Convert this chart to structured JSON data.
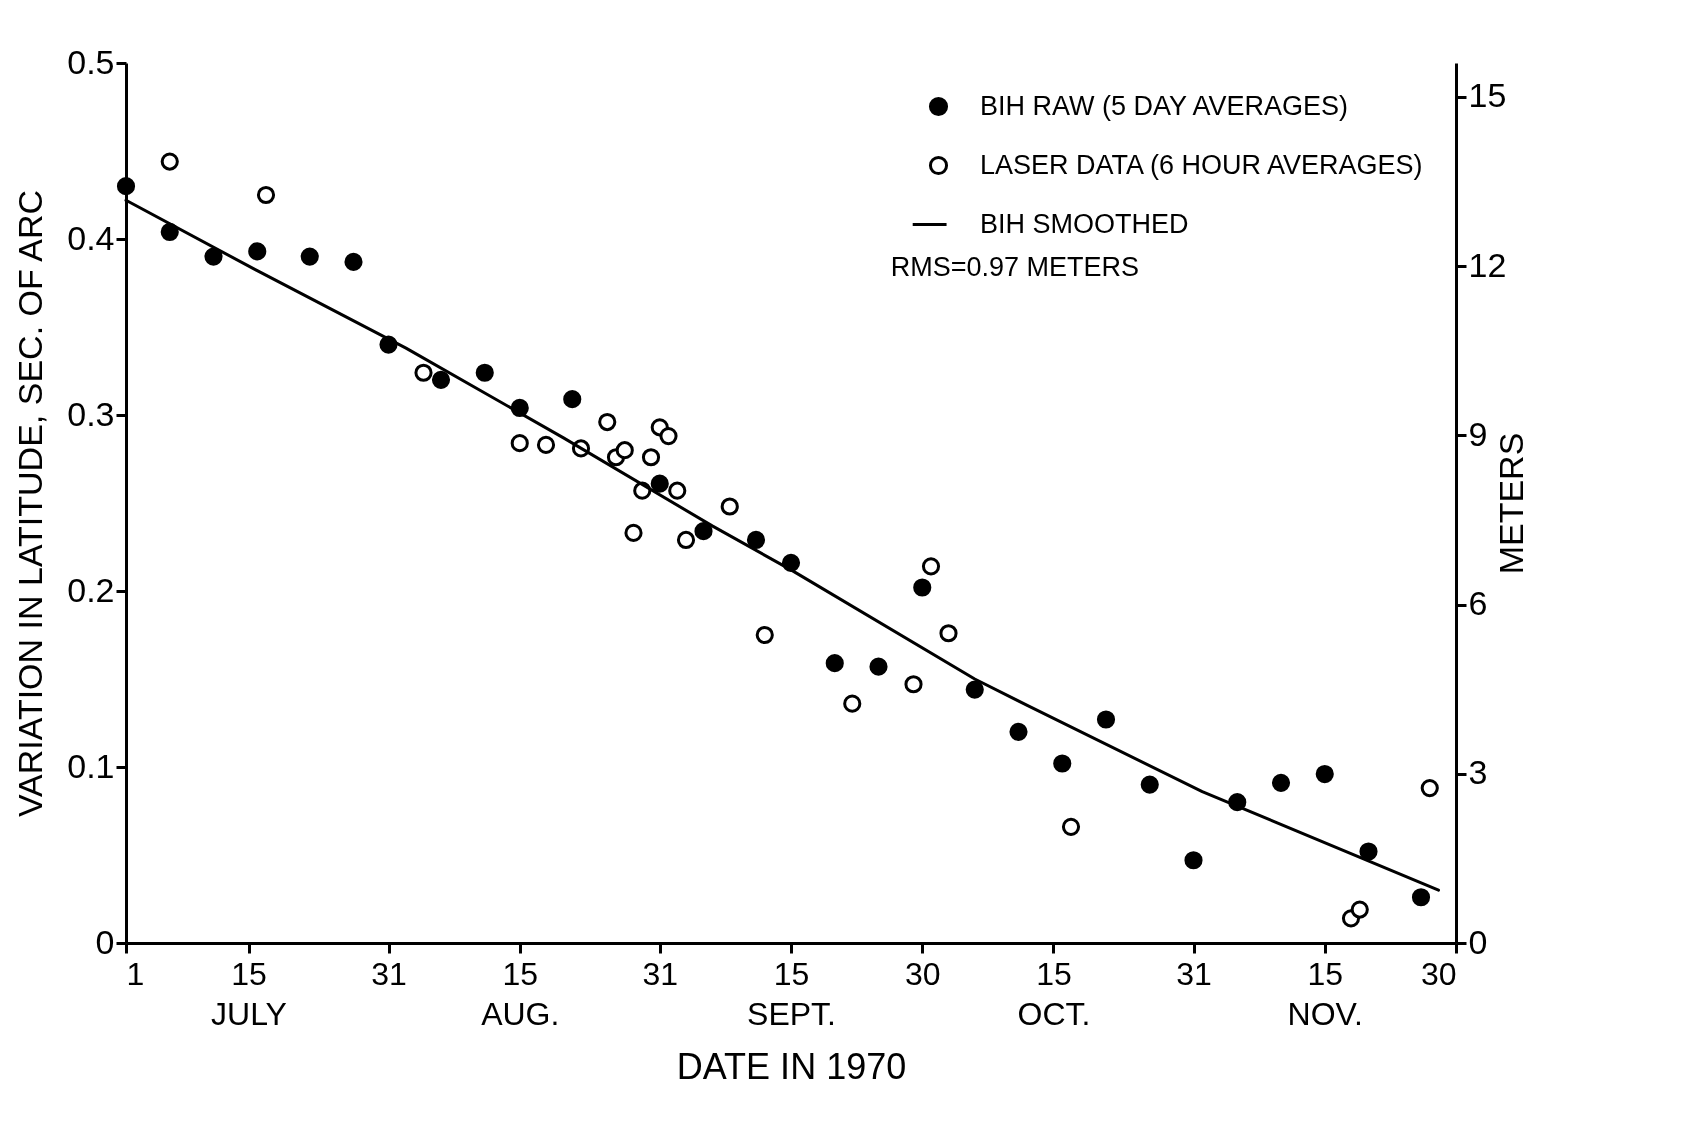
{
  "chart_data": {
    "type": "scatter",
    "xlabel": "DATE IN 1970",
    "ylabel": "VARIATION IN LATITUDE, SEC. OF ARC",
    "y2label": "METERS",
    "annotations": [
      "RMS=0.97 METERS"
    ],
    "xlim": [
      "1970-07-01",
      "1970-11-30"
    ],
    "xticks": [
      {
        "value": "1970-07-01",
        "label": "1"
      },
      {
        "value": "1970-07-15",
        "label": "15\nJULY"
      },
      {
        "value": "1970-07-31",
        "label": "31"
      },
      {
        "value": "1970-08-15",
        "label": "15\nAUG."
      },
      {
        "value": "1970-08-31",
        "label": "31"
      },
      {
        "value": "1970-09-15",
        "label": "15\nSEPT."
      },
      {
        "value": "1970-09-30",
        "label": "30"
      },
      {
        "value": "1970-10-15",
        "label": "15\nOCT."
      },
      {
        "value": "1970-10-31",
        "label": "31"
      },
      {
        "value": "1970-11-15",
        "label": "15\nNOV."
      },
      {
        "value": "1970-11-30",
        "label": "30"
      }
    ],
    "ylim": [
      0,
      0.5
    ],
    "yticks": [
      0,
      0.1,
      0.2,
      0.3,
      0.4,
      0.5
    ],
    "y2lim": [
      0,
      15.6
    ],
    "y2ticks": [
      0,
      3,
      6,
      9,
      12,
      15
    ],
    "legend": "top right",
    "series": [
      {
        "name": "BIH RAW (5 DAY AVERAGES)",
        "marker": "circle",
        "color": "#000000",
        "x": [
          "1970-07-01",
          "1970-07-06",
          "1970-07-11",
          "1970-07-16",
          "1970-07-22",
          "1970-07-27",
          "1970-07-31",
          "1970-08-06",
          "1970-08-11",
          "1970-08-15",
          "1970-08-21",
          "1970-08-31",
          "1970-09-05",
          "1970-09-11",
          "1970-09-15",
          "1970-09-20",
          "1970-09-25",
          "1970-09-30",
          "1970-10-06",
          "1970-10-11",
          "1970-10-16",
          "1970-10-21",
          "1970-10-26",
          "1970-10-31",
          "1970-11-05",
          "1970-11-10",
          "1970-11-15",
          "1970-11-20",
          "1970-11-26"
        ],
        "values": [
          0.43,
          0.404,
          0.39,
          0.393,
          0.39,
          0.387,
          0.34,
          0.32,
          0.324,
          0.304,
          0.309,
          0.261,
          0.234,
          0.229,
          0.216,
          0.159,
          0.157,
          0.202,
          0.144,
          0.12,
          0.102,
          0.127,
          0.09,
          0.047,
          0.08,
          0.091,
          0.096,
          0.052,
          0.026
        ]
      },
      {
        "name": "LASER DATA (6 HOUR AVERAGES)",
        "marker": "circle",
        "color": "#000000",
        "x": [
          "1970-07-06",
          "1970-07-17",
          "1970-08-04",
          "1970-08-15",
          "1970-08-18",
          "1970-08-22",
          "1970-08-25",
          "1970-08-26",
          "1970-08-27",
          "1970-08-28",
          "1970-08-29",
          "1970-08-30",
          "1970-08-31",
          "1970-09-01",
          "1970-09-02",
          "1970-09-03",
          "1970-09-08",
          "1970-09-12",
          "1970-09-22",
          "1970-09-29",
          "1970-10-01",
          "1970-10-03",
          "1970-10-17",
          "1970-11-18",
          "1970-11-19",
          "1970-11-27"
        ],
        "values": [
          0.444,
          0.425,
          0.324,
          0.284,
          0.283,
          0.281,
          0.296,
          0.276,
          0.28,
          0.233,
          0.257,
          0.276,
          0.293,
          0.288,
          0.257,
          0.229,
          0.248,
          0.175,
          0.136,
          0.147,
          0.214,
          0.176,
          0.066,
          0.014,
          0.019,
          0.088
        ]
      },
      {
        "name": "BIH SMOOTHED",
        "type": "line",
        "color": "#000000",
        "line_style": "solid",
        "x": [
          "1970-07-01",
          "1970-07-16",
          "1970-08-02",
          "1970-08-20",
          "1970-09-06",
          "1970-09-15",
          "1970-10-06",
          "1970-10-12",
          "1970-11-01",
          "1970-11-28"
        ],
        "values": [
          0.422,
          0.382,
          0.338,
          0.287,
          0.237,
          0.212,
          0.15,
          0.135,
          0.086,
          0.03
        ]
      }
    ]
  }
}
